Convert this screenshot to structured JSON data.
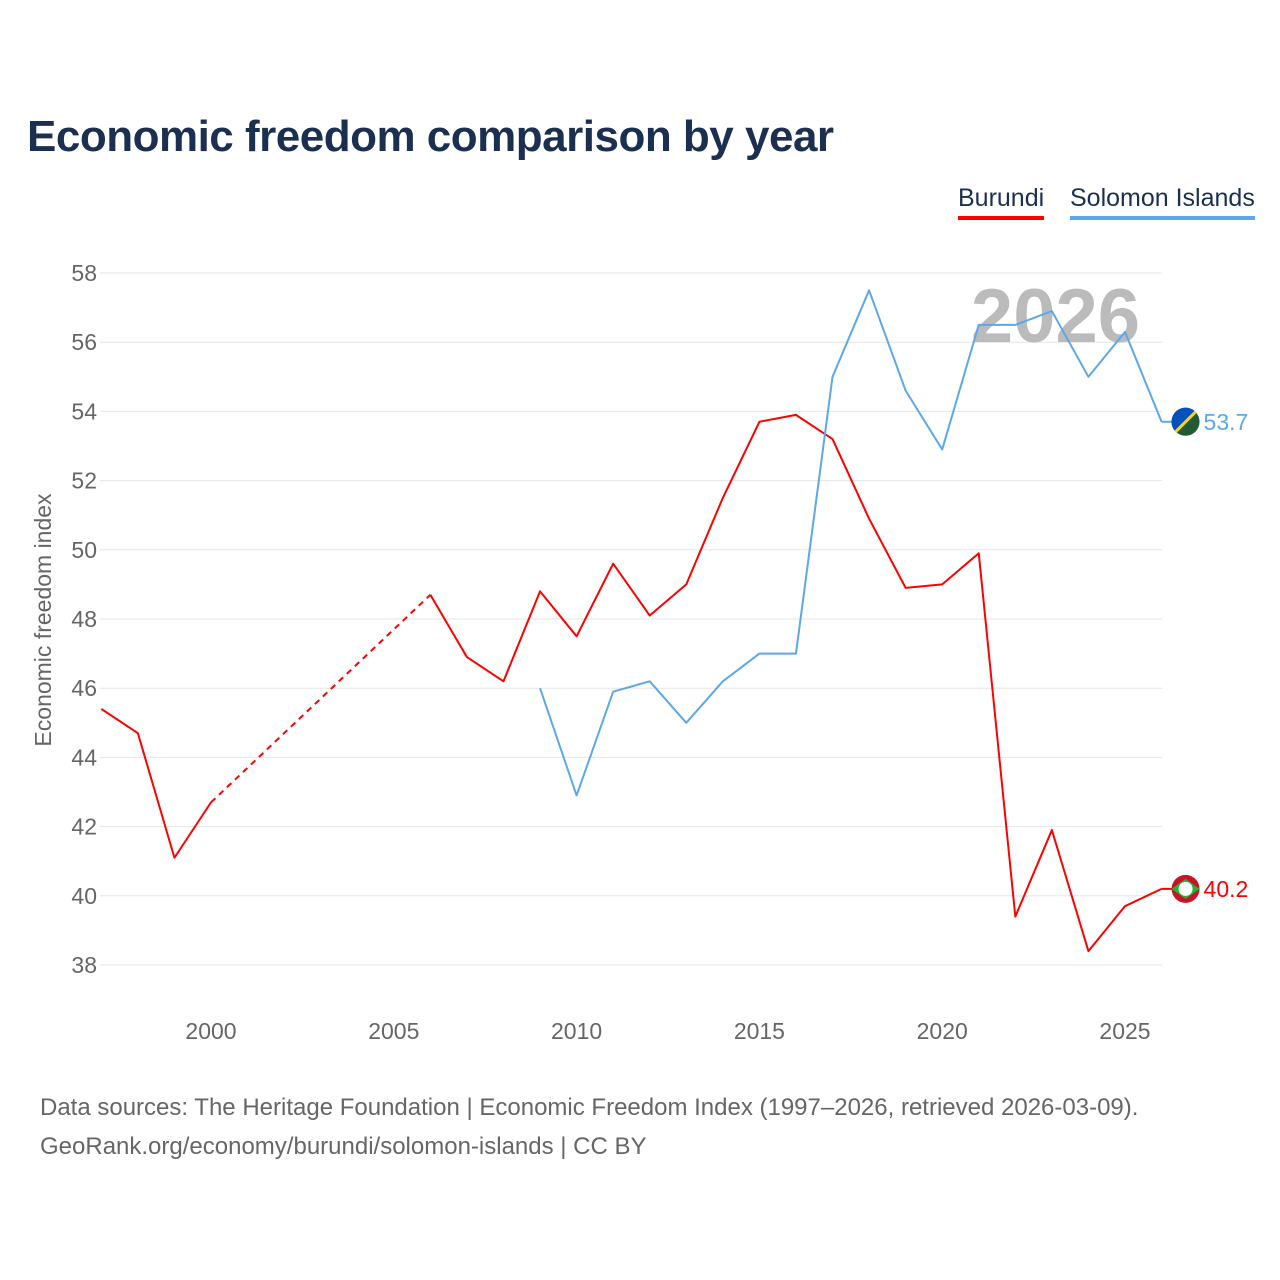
{
  "title": "Economic freedom comparison by year",
  "footer": {
    "line1": "Data sources: The Heritage Foundation | Economic Freedom Index (1997–2026, retrieved 2026-03-09).",
    "line2": "GeoRank.org/economy/burundi/solomon-islands | CC BY"
  },
  "chart_data": {
    "type": "line",
    "title": "Economic freedom comparison by year",
    "ylabel": "Economic freedom index",
    "xlabel": "",
    "xlim": [
      1997,
      2026
    ],
    "ylim": [
      37,
      58.5
    ],
    "xticks": [
      2000,
      2005,
      2010,
      2015,
      2020,
      2025
    ],
    "yticks": [
      38,
      40,
      42,
      44,
      46,
      48,
      50,
      52,
      54,
      56,
      58
    ],
    "grid": true,
    "legend": "top-right",
    "watermark": "2026",
    "series": [
      {
        "name": "Burundi",
        "color": "#ff0000",
        "end_label": "40.2",
        "x": [
          1997,
          1998,
          1999,
          2000,
          2006,
          2007,
          2008,
          2009,
          2010,
          2011,
          2012,
          2013,
          2014,
          2015,
          2016,
          2017,
          2018,
          2019,
          2020,
          2021,
          2022,
          2023,
          2024,
          2025,
          2026
        ],
        "values": [
          45.4,
          44.7,
          41.1,
          42.7,
          48.7,
          46.9,
          46.2,
          48.8,
          47.5,
          49.6,
          48.1,
          49.0,
          51.5,
          53.7,
          53.9,
          53.2,
          50.9,
          48.9,
          49.0,
          49.9,
          39.4,
          41.9,
          38.4,
          39.7,
          40.2
        ],
        "dashed_gap": [
          2000,
          2006
        ]
      },
      {
        "name": "Solomon Islands",
        "color": "#5ca8ea",
        "end_label": "53.7",
        "x": [
          2009,
          2010,
          2011,
          2012,
          2013,
          2014,
          2015,
          2016,
          2017,
          2018,
          2019,
          2020,
          2021,
          2022,
          2023,
          2024,
          2025,
          2026
        ],
        "values": [
          46.0,
          42.9,
          45.9,
          46.2,
          45.0,
          46.2,
          47.0,
          47.0,
          55.0,
          57.5,
          54.6,
          52.9,
          56.5,
          56.5,
          56.9,
          55.0,
          56.3,
          53.7
        ]
      }
    ]
  }
}
